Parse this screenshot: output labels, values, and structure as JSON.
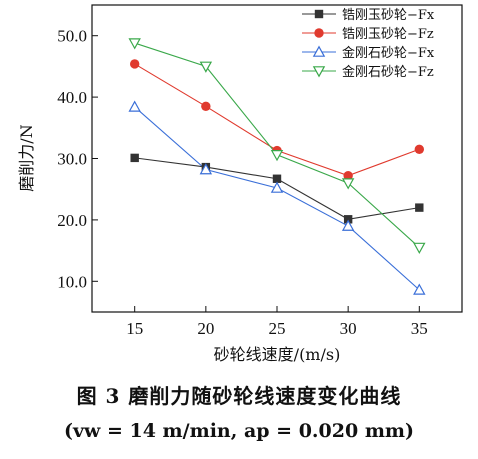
{
  "caption": {
    "title": "图 3   磨削力随砂轮线速度变化曲线",
    "condition": "(vw = 14 m/min, ap = 0.020 mm)"
  },
  "chart_data": {
    "type": "line",
    "xlabel": "砂轮线速度/(m/s)",
    "ylabel": "磨削力/N",
    "x": [
      15,
      20,
      25,
      30,
      35
    ],
    "xlim": [
      12,
      38
    ],
    "ylim": [
      5,
      55
    ],
    "yticks": [
      "10.0",
      "20.0",
      "30.0",
      "40.0",
      "50.0"
    ],
    "xticks": [
      "15",
      "20",
      "25",
      "30",
      "35"
    ],
    "legend_position": "top-right",
    "grid": false,
    "series": [
      {
        "name": "锆刚玉砂轮−Fx",
        "color": "#333333",
        "marker": "square",
        "values": [
          30.1,
          28.6,
          26.7,
          20.1,
          22.0
        ]
      },
      {
        "name": "锆刚玉砂轮−Fz",
        "color": "#e03a2e",
        "marker": "circle",
        "values": [
          45.4,
          38.5,
          31.3,
          27.2,
          31.5
        ]
      },
      {
        "name": "金刚石砂轮−Fx",
        "color": "#3a6fd8",
        "marker": "triangle-up",
        "values": [
          38.4,
          28.2,
          25.2,
          19.0,
          8.6
        ]
      },
      {
        "name": "金刚石砂轮−Fz",
        "color": "#3aa84a",
        "marker": "triangle-down",
        "values": [
          48.8,
          45.0,
          30.6,
          26.0,
          15.5
        ]
      }
    ]
  }
}
